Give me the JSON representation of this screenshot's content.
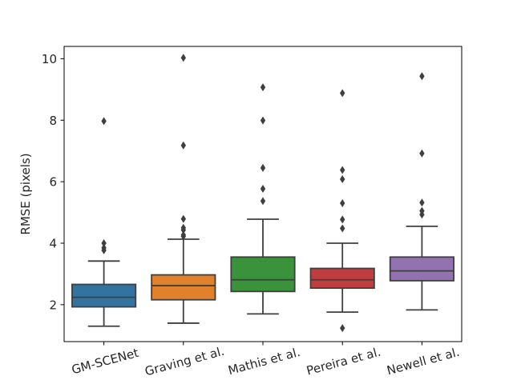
{
  "chart_data": {
    "type": "box",
    "title": "",
    "xlabel": "",
    "ylabel": "RMSE (pixels)",
    "ylim": [
      0.8,
      10.4
    ],
    "yticks": [
      2,
      4,
      6,
      8,
      10
    ],
    "grid": false,
    "categories": [
      "GM-SCENet",
      "Graving et al.",
      "Mathis et al.",
      "Pereira et al.",
      "Newell et al."
    ],
    "boxes": [
      {
        "name": "GM-SCENet",
        "color": "#3274a1",
        "whisker_low": 1.3,
        "q1": 1.93,
        "median": 2.24,
        "q3": 2.66,
        "whisker_high": 3.42,
        "outliers": [
          3.77,
          3.85,
          4.0,
          7.97
        ]
      },
      {
        "name": "Graving et al.",
        "color": "#e1812c",
        "whisker_low": 1.4,
        "q1": 2.16,
        "median": 2.62,
        "q3": 2.97,
        "whisker_high": 4.13,
        "outliers": [
          4.22,
          4.27,
          4.43,
          4.5,
          4.79,
          7.18,
          10.03
        ]
      },
      {
        "name": "Mathis et al.",
        "color": "#3a923a",
        "whisker_low": 1.7,
        "q1": 2.43,
        "median": 2.81,
        "q3": 3.55,
        "whisker_high": 4.78,
        "outliers": [
          5.37,
          5.77,
          6.45,
          7.99,
          9.07
        ]
      },
      {
        "name": "Pereira et al.",
        "color": "#c03d3e",
        "whisker_low": 1.76,
        "q1": 2.54,
        "median": 2.81,
        "q3": 3.18,
        "whisker_high": 4.0,
        "outliers": [
          1.24,
          4.48,
          4.77,
          5.3,
          6.08,
          6.38,
          8.88
        ]
      },
      {
        "name": "Newell et al.",
        "color": "#9372b2",
        "whisker_low": 1.83,
        "q1": 2.78,
        "median": 3.1,
        "q3": 3.55,
        "whisker_high": 4.55,
        "outliers": [
          4.93,
          5.05,
          5.32,
          6.92,
          9.43
        ]
      }
    ]
  }
}
